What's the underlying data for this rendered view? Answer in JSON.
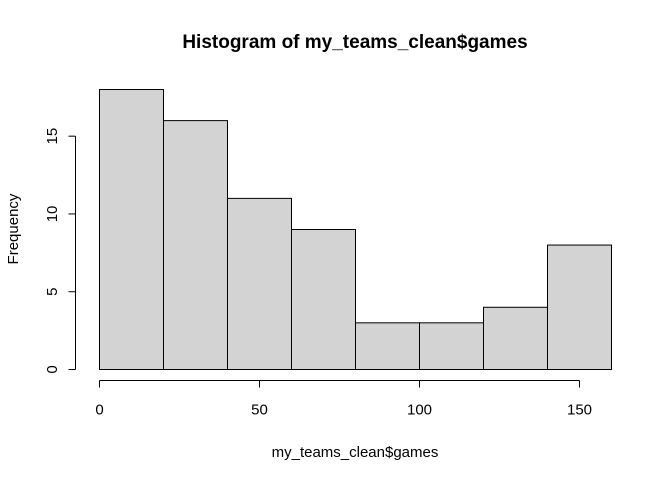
{
  "chart_data": {
    "type": "bar",
    "title": "Histogram of my_teams_clean$games",
    "xlabel": "my_teams_clean$games",
    "ylabel": "Frequency",
    "bins": [
      {
        "start": 0,
        "end": 20,
        "count": 18
      },
      {
        "start": 20,
        "end": 40,
        "count": 16
      },
      {
        "start": 40,
        "end": 60,
        "count": 11
      },
      {
        "start": 60,
        "end": 80,
        "count": 9
      },
      {
        "start": 80,
        "end": 100,
        "count": 3
      },
      {
        "start": 100,
        "end": 120,
        "count": 3
      },
      {
        "start": 120,
        "end": 140,
        "count": 4
      },
      {
        "start": 140,
        "end": 160,
        "count": 8
      }
    ],
    "xlim": [
      0,
      160
    ],
    "ylim": [
      0,
      18
    ],
    "x_ticks": [
      0,
      50,
      100,
      150
    ],
    "y_ticks": [
      0,
      5,
      10,
      15
    ],
    "bar_fill": "#d3d3d3",
    "bar_stroke": "#000000",
    "grid": false,
    "legend": "none"
  }
}
